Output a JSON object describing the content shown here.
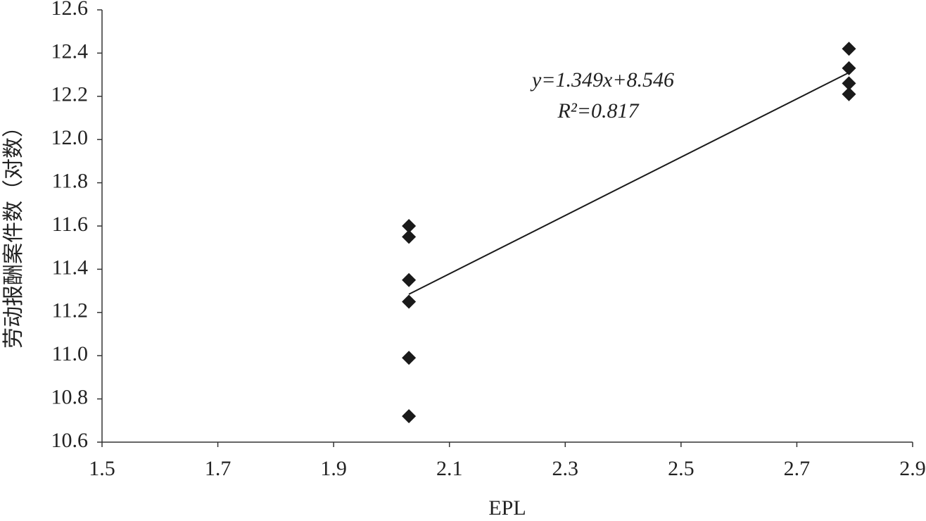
{
  "chart_data": {
    "type": "scatter",
    "x_label": "EPL",
    "y_label": "劳动报酬案件数（对数）",
    "series": [
      {
        "color": "#1a1a1a",
        "x": [
          2.03,
          2.03,
          2.03,
          2.03,
          2.03,
          2.03,
          2.79,
          2.79,
          2.79,
          2.79
        ],
        "values": [
          11.6,
          11.55,
          11.35,
          11.25,
          10.99,
          10.72,
          12.42,
          12.33,
          12.26,
          12.21
        ]
      }
    ],
    "trendline": {
      "slope": 1.349,
      "intercept": 8.546,
      "color": "#1a1a1a"
    },
    "annotations": [
      "y=1.349x+8.546",
      "R²=0.817"
    ],
    "xlim": [
      1.5,
      2.9
    ],
    "xticks": [
      1.5,
      1.7,
      1.9,
      2.1,
      2.3,
      2.5,
      2.7,
      2.9
    ],
    "ylim": [
      10.6,
      12.6
    ],
    "yticks": [
      10.6,
      10.8,
      {
        "value": 11,
        "label": "11.0"
      },
      11.2,
      11.4,
      11.6,
      11.8,
      {
        "value": 12,
        "label": "12.0"
      },
      12.2,
      12.4,
      12.6
    ],
    "grid": false
  }
}
